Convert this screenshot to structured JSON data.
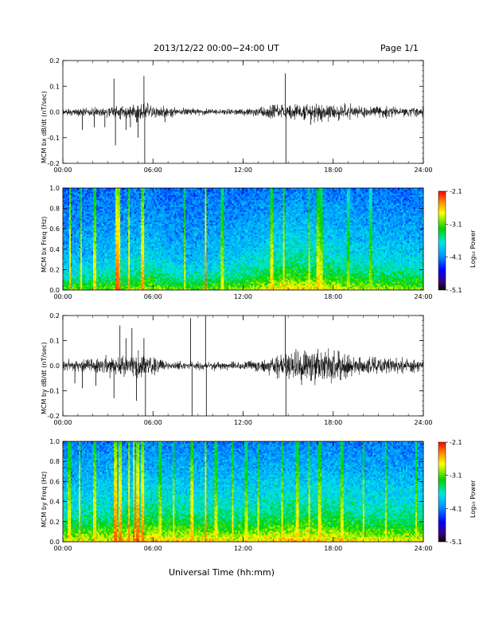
{
  "header": {
    "title": "2013/12/22  00:00−24:00 UT",
    "page": "Page 1/1"
  },
  "footer": {
    "xlabel": "Universal Time (hh:mm)"
  },
  "chart_data": [
    {
      "type": "line",
      "ylabel": "MCM bx dB/dt (nT/sec)",
      "ylim": [
        -0.2,
        0.2
      ],
      "yticks": [
        "-0.2",
        "-0.1",
        "0.0",
        "0.1",
        "0.2"
      ],
      "xlim": [
        0,
        24
      ],
      "xticks": [
        "00:00",
        "06:00",
        "12:00",
        "18:00",
        "24:00"
      ],
      "noise": [
        [
          0,
          0.012
        ],
        [
          2,
          0.015
        ],
        [
          3.5,
          0.02
        ],
        [
          5.5,
          0.03
        ],
        [
          8,
          0.012
        ],
        [
          12,
          0.012
        ],
        [
          14,
          0.025
        ],
        [
          17,
          0.03
        ],
        [
          20,
          0.022
        ],
        [
          24,
          0.018
        ]
      ],
      "spikes": [
        [
          1.3,
          -0.07
        ],
        [
          2.1,
          -0.06
        ],
        [
          2.8,
          -0.06
        ],
        [
          3.4,
          0.13
        ],
        [
          3.5,
          -0.13
        ],
        [
          4.2,
          -0.07
        ],
        [
          4.5,
          -0.06
        ],
        [
          5.0,
          -0.1
        ],
        [
          5.4,
          0.14
        ],
        [
          5.45,
          -0.2
        ],
        [
          6.8,
          -0.04
        ],
        [
          14.8,
          0.15
        ],
        [
          14.85,
          -0.2
        ],
        [
          16.5,
          -0.05
        ]
      ]
    },
    {
      "type": "heatmap",
      "ylabel": "MCM bx Freq (Hz)",
      "ylim": [
        0.0,
        1.0
      ],
      "yticks": [
        "0.0",
        "0.2",
        "0.4",
        "0.6",
        "0.8",
        "1.0"
      ],
      "xlim": [
        0,
        24
      ],
      "xticks": [
        "00:00",
        "06:00",
        "12:00",
        "18:00",
        "24:00"
      ],
      "colorbar": {
        "min": -5.1,
        "max": -2.1,
        "ticks": [
          "-2.1",
          "-3.1",
          "-4.1",
          "-5.1"
        ],
        "label": "Log₁₀ Power"
      },
      "activity": [
        [
          0,
          0.25
        ],
        [
          3,
          0.3
        ],
        [
          5.5,
          0.4
        ],
        [
          8,
          0.25
        ],
        [
          12,
          0.35
        ],
        [
          15,
          0.55
        ],
        [
          17,
          0.5
        ],
        [
          20,
          0.4
        ],
        [
          24,
          0.35
        ]
      ],
      "bursts": [
        [
          0.5,
          0.8
        ],
        [
          1.2,
          0.7
        ],
        [
          2.1,
          0.7
        ],
        [
          3.6,
          1.0
        ],
        [
          3.7,
          0.9
        ],
        [
          4.4,
          0.8
        ],
        [
          5.3,
          0.85
        ],
        [
          8.1,
          0.6
        ],
        [
          9.5,
          0.95
        ],
        [
          10.6,
          0.6
        ],
        [
          13.9,
          0.7
        ],
        [
          14.7,
          0.75
        ],
        [
          16.4,
          0.65
        ],
        [
          17.0,
          0.7
        ],
        [
          17.2,
          0.6
        ],
        [
          19.0,
          0.45
        ],
        [
          20.5,
          0.45
        ]
      ]
    },
    {
      "type": "line",
      "ylabel": "MCM by dB/dt (nT/sec)",
      "ylim": [
        -0.2,
        0.2
      ],
      "yticks": [
        "-0.2",
        "-0.1",
        "0.0",
        "0.1",
        "0.2"
      ],
      "xlim": [
        0,
        24
      ],
      "xticks": [
        "00:00",
        "06:00",
        "12:00",
        "18:00",
        "24:00"
      ],
      "noise": [
        [
          0,
          0.02
        ],
        [
          2,
          0.025
        ],
        [
          3.5,
          0.035
        ],
        [
          5.5,
          0.04
        ],
        [
          7,
          0.015
        ],
        [
          12,
          0.015
        ],
        [
          14,
          0.03
        ],
        [
          15.5,
          0.06
        ],
        [
          17,
          0.06
        ],
        [
          20,
          0.03
        ],
        [
          24,
          0.025
        ]
      ],
      "spikes": [
        [
          0.8,
          -0.07
        ],
        [
          1.3,
          -0.09
        ],
        [
          2.2,
          -0.08
        ],
        [
          3.4,
          -0.13
        ],
        [
          3.8,
          0.16
        ],
        [
          4.2,
          0.11
        ],
        [
          4.6,
          0.15
        ],
        [
          4.9,
          -0.14
        ],
        [
          5.4,
          0.11
        ],
        [
          5.5,
          -0.2
        ],
        [
          8.5,
          0.19
        ],
        [
          8.6,
          -0.2
        ],
        [
          9.5,
          0.2
        ],
        [
          9.55,
          -0.2
        ],
        [
          14.8,
          0.2
        ],
        [
          14.85,
          -0.2
        ],
        [
          16.1,
          0.06
        ]
      ]
    },
    {
      "type": "heatmap",
      "ylabel": "MCM by Freq (Hz)",
      "ylim": [
        0.0,
        1.0
      ],
      "yticks": [
        "0.0",
        "0.2",
        "0.4",
        "0.6",
        "0.8",
        "1.0"
      ],
      "xlim": [
        0,
        24
      ],
      "xticks": [
        "00:00",
        "06:00",
        "12:00",
        "18:00",
        "24:00"
      ],
      "colorbar": {
        "min": -5.1,
        "max": -2.1,
        "ticks": [
          "-2.1",
          "-3.1",
          "-4.1",
          "-5.1"
        ],
        "label": "Log₁₀ Power"
      },
      "activity": [
        [
          0,
          0.45
        ],
        [
          3,
          0.5
        ],
        [
          5,
          0.6
        ],
        [
          8,
          0.55
        ],
        [
          12,
          0.5
        ],
        [
          15,
          0.6
        ],
        [
          17.5,
          0.6
        ],
        [
          20,
          0.5
        ],
        [
          24,
          0.5
        ]
      ],
      "bursts": [
        [
          0.4,
          0.7
        ],
        [
          1.1,
          0.8
        ],
        [
          2.1,
          0.75
        ],
        [
          3.5,
          0.95
        ],
        [
          3.8,
          0.9
        ],
        [
          4.4,
          0.9
        ],
        [
          4.7,
          1.0
        ],
        [
          5.0,
          0.95
        ],
        [
          5.3,
          0.9
        ],
        [
          6.5,
          0.6
        ],
        [
          7.4,
          0.7
        ],
        [
          8.6,
          0.8
        ],
        [
          9.5,
          0.9
        ],
        [
          10.2,
          0.65
        ],
        [
          11.3,
          0.7
        ],
        [
          12.2,
          0.6
        ],
        [
          13.0,
          0.65
        ],
        [
          14.6,
          0.7
        ],
        [
          15.6,
          0.7
        ],
        [
          16.4,
          0.75
        ],
        [
          17.1,
          0.7
        ],
        [
          18.6,
          0.65
        ],
        [
          20.0,
          0.7
        ],
        [
          21.5,
          0.65
        ],
        [
          23.5,
          0.6
        ]
      ]
    }
  ]
}
